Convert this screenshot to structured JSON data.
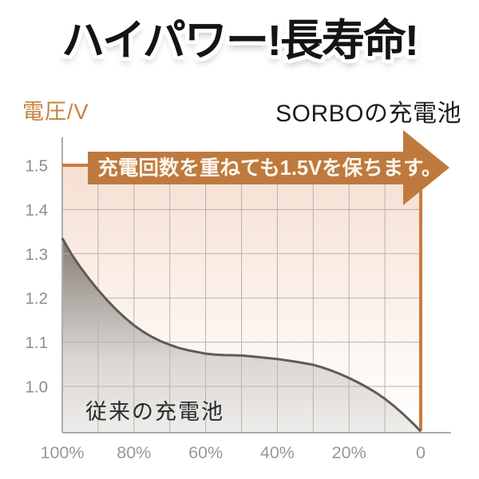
{
  "title": "ハイパワー!長寿命!",
  "header": {
    "y_axis_label": "電圧/V",
    "right_series_label": "SORBOの充電池"
  },
  "banner": {
    "text": "充電回数を重ねても1.5Vを保ちます。"
  },
  "labels": {
    "conventional_series": "従来の充電池"
  },
  "colors": {
    "accent_orange_line": "#CC7A3A",
    "banner_orange": "#BE7A3E",
    "orange_text": "#C6813D",
    "curve_gray": "#5E5B58",
    "tick_gray": "#9a9894",
    "plot_fill_top": "#F5DFD2",
    "title_black": "#141414"
  },
  "chart_data": {
    "type": "line",
    "title": "ハイパワー!長寿命!",
    "ylabel": "電圧/V",
    "xlabel": "",
    "x_unit": "%",
    "x_direction": "reversed_100_to_0",
    "ylim": [
      0.9,
      1.56
    ],
    "xlim_percent": [
      100,
      0
    ],
    "grid": "on",
    "annotation": "充電回数を重ねても1.5Vを保ちます。",
    "x_ticks": [
      {
        "label": "100%",
        "percent": 100
      },
      {
        "label": "80%",
        "percent": 80
      },
      {
        "label": "60%",
        "percent": 60
      },
      {
        "label": "40%",
        "percent": 40
      },
      {
        "label": "20%",
        "percent": 20
      },
      {
        "label": "0",
        "percent": 0
      }
    ],
    "y_ticks": [
      {
        "label": "1.5",
        "volts": 1.5
      },
      {
        "label": "1.4",
        "volts": 1.4
      },
      {
        "label": "1.3",
        "volts": 1.3
      },
      {
        "label": "1.2",
        "volts": 1.2
      },
      {
        "label": "1.1",
        "volts": 1.1
      },
      {
        "label": "1.0",
        "volts": 1.0
      }
    ],
    "grid_lines": {
      "x_percents": [
        90,
        80,
        70,
        60,
        50,
        40,
        30,
        20,
        10
      ],
      "y_volts": [
        1.4,
        1.3,
        1.2,
        1.1,
        1.0
      ]
    },
    "series": [
      {
        "name": "SORBOの充電池",
        "color": "#CC7A3A",
        "stroke_width": 4,
        "area": false,
        "points": [
          [
            100,
            1.5
          ],
          [
            0,
            1.5
          ],
          [
            0,
            0.9
          ]
        ]
      },
      {
        "name": "従来の充電池",
        "color": "#5E5B58",
        "stroke_width": 3,
        "area": true,
        "points": [
          [
            100,
            1.335
          ],
          [
            97.5,
            1.3
          ],
          [
            95,
            1.27
          ],
          [
            92.5,
            1.243
          ],
          [
            90,
            1.218
          ],
          [
            87.5,
            1.195
          ],
          [
            85,
            1.174
          ],
          [
            82.5,
            1.155
          ],
          [
            80,
            1.138
          ],
          [
            77.5,
            1.124
          ],
          [
            75,
            1.112
          ],
          [
            72.5,
            1.102
          ],
          [
            70,
            1.094
          ],
          [
            67.5,
            1.087
          ],
          [
            65,
            1.082
          ],
          [
            62.5,
            1.078
          ],
          [
            60,
            1.074
          ],
          [
            57.5,
            1.072
          ],
          [
            55,
            1.071
          ],
          [
            50,
            1.07
          ],
          [
            45,
            1.066
          ],
          [
            40,
            1.062
          ],
          [
            35,
            1.056
          ],
          [
            30,
            1.049
          ],
          [
            27.5,
            1.043
          ],
          [
            25,
            1.036
          ],
          [
            22.5,
            1.028
          ],
          [
            20,
            1.019
          ],
          [
            17.5,
            1.009
          ],
          [
            15,
            0.998
          ],
          [
            12.5,
            0.986
          ],
          [
            10,
            0.972
          ],
          [
            7.5,
            0.956
          ],
          [
            5,
            0.938
          ],
          [
            3,
            0.923
          ],
          [
            1.5,
            0.911
          ],
          [
            0,
            0.898
          ]
        ]
      }
    ]
  }
}
